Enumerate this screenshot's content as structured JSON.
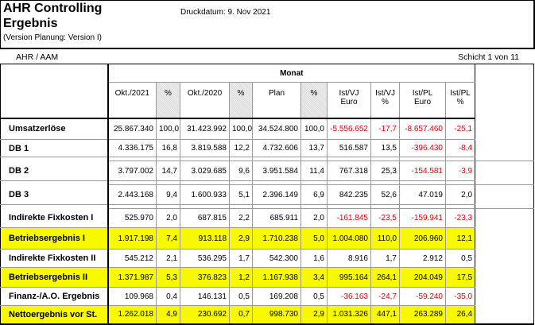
{
  "header": {
    "title": "AHR Controlling",
    "subtitle": "Ergebnis",
    "version": "(Version Planung: Version I)",
    "print_date": "Druckdatum:  9. Nov 2021"
  },
  "org": "AHR / AAM",
  "page": "Schicht 1 von 11",
  "table": {
    "group": "Monat",
    "columns": [
      "Okt./2021",
      "%",
      "Okt./2020",
      "%",
      "Plan",
      "%",
      "Ist/VJ\nEuro",
      "Ist/VJ\n%",
      "Ist/PL\nEuro",
      "Ist/PL\n%"
    ],
    "highlight_color": "#f8f800",
    "negative_color": "#e00000",
    "rows": [
      {
        "label": "Umsatzerlöse",
        "values": [
          "25.867.340",
          "100,0",
          "31.423.992",
          "100,0",
          "34.524.800",
          "100,0",
          "-5.556.652",
          "-17,7",
          "-8.657.460",
          "-25,1"
        ]
      },
      {
        "label": "DB 1",
        "values": [
          "4.336.175",
          "16,8",
          "3.819.588",
          "12,2",
          "4.732.606",
          "13,7",
          "516.587",
          "13,5",
          "-396.430",
          "-8,4"
        ]
      },
      {
        "label": "DB 2",
        "values": [
          "3.797.002",
          "14,7",
          "3.029.685",
          "9,6",
          "3.951.584",
          "11,4",
          "767.318",
          "25,3",
          "-154.581",
          "-3,9"
        ]
      },
      {
        "label": "DB 3",
        "values": [
          "2.443.168",
          "9,4",
          "1.600.933",
          "5,1",
          "2.396.149",
          "6,9",
          "842.235",
          "52,6",
          "47.019",
          "2,0"
        ]
      },
      {
        "label": "Indirekte Fixkosten I",
        "values": [
          "525.970",
          "2,0",
          "687.815",
          "2,2",
          "685.911",
          "2,0",
          "-161.845",
          "-23,5",
          "-159.941",
          "-23,3"
        ]
      },
      {
        "label": "Betriebsergebnis I",
        "highlight": true,
        "values": [
          "1.917.198",
          "7,4",
          "913.118",
          "2,9",
          "1.710.238",
          "5,0",
          "1.004.080",
          "110,0",
          "206.960",
          "12,1"
        ]
      },
      {
        "label": "Indirekte Fixkosten II",
        "values": [
          "545.212",
          "2,1",
          "536.295",
          "1,7",
          "542.300",
          "1,6",
          "8.916",
          "1,7",
          "2.912",
          "0,5"
        ]
      },
      {
        "label": "Betriebsergebnis II",
        "highlight": true,
        "values": [
          "1.371.987",
          "5,3",
          "376.823",
          "1,2",
          "1.167.938",
          "3,4",
          "995.164",
          "264,1",
          "204.049",
          "17,5"
        ]
      },
      {
        "label": "Finanz-/A.O. Ergebnis",
        "values": [
          "109.968",
          "0,4",
          "146.131",
          "0,5",
          "169.208",
          "0,5",
          "-36.163",
          "-24,7",
          "-59.240",
          "-35,0"
        ]
      },
      {
        "label": "Nettoergebnis vor St.",
        "highlight": true,
        "values": [
          "1.262.018",
          "4,9",
          "230.692",
          "0,7",
          "998.730",
          "2,9",
          "1.031.326",
          "447,1",
          "263.289",
          "26,4"
        ]
      }
    ]
  }
}
